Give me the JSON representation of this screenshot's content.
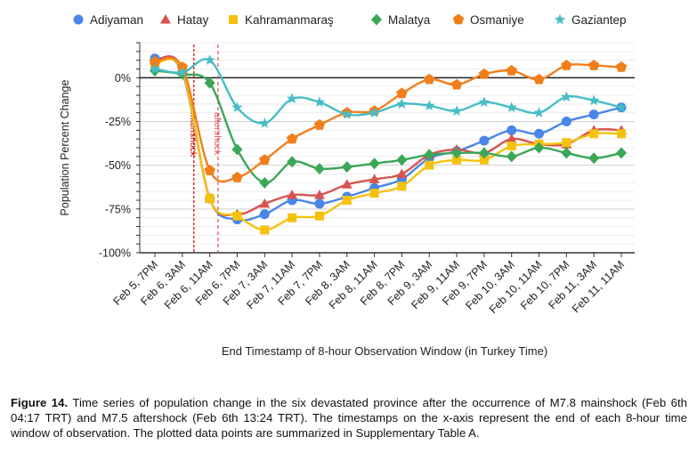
{
  "chart_data": {
    "type": "line",
    "xlabel": "End Timestamp of 8-hour Observation Window (in Turkey Time)",
    "ylabel": "Population Percent Change",
    "ylim": [
      -100,
      20
    ],
    "yticks": [
      0,
      -25,
      -50,
      -75,
      -100
    ],
    "ytick_labels": [
      "0%",
      "-25%",
      "-50%",
      "-75%",
      "-100%"
    ],
    "legend_position": "top",
    "grid": true,
    "categories": [
      "Feb 5, 7PM",
      "Feb 6, 3AM",
      "Feb 6, 11AM",
      "Feb 6, 7PM",
      "Feb 7, 3AM",
      "Feb 7, 11AM",
      "Feb 7, 7PM",
      "Feb 8, 3AM",
      "Feb 8, 11AM",
      "Feb 8, 7PM",
      "Feb 9, 3AM",
      "Feb 9, 11AM",
      "Feb 9, 7PM",
      "Feb 10, 3AM",
      "Feb 10, 11AM",
      "Feb 10, 7PM",
      "Feb 11, 3AM",
      "Feb 11, 11AM"
    ],
    "annotations": [
      {
        "label": "mainshock",
        "x": 1.42,
        "color": "#cc0000",
        "dash": "3,2"
      },
      {
        "label": "aftershock",
        "x": 2.3,
        "color": "#e05050",
        "dash": "4,3"
      }
    ],
    "series": [
      {
        "name": "Adiyaman",
        "color": "#4a86e8",
        "marker": "circle",
        "values": [
          11,
          3,
          -69,
          -81,
          -78,
          -70,
          -72,
          -68,
          -63,
          -58,
          -46,
          -42,
          -36,
          -30,
          -32,
          -25,
          -21,
          -17
        ]
      },
      {
        "name": "Hatay",
        "color": "#d9534f",
        "marker": "triangle",
        "values": [
          10,
          5,
          -69,
          -78,
          -72,
          -67,
          -67,
          -61,
          -58,
          -55,
          -44,
          -41,
          -43,
          -35,
          -38,
          -38,
          -30,
          -30
        ]
      },
      {
        "name": "Kahramanmaraş",
        "color": "#f4c20d",
        "marker": "square",
        "values": [
          8,
          4,
          -69,
          -79,
          -87,
          -80,
          -79,
          -70,
          -66,
          -62,
          -50,
          -47,
          -47,
          -39,
          -38,
          -37,
          -32,
          -32
        ]
      },
      {
        "name": "Malatya",
        "color": "#3aa757",
        "marker": "diamond",
        "values": [
          4,
          2,
          -3,
          -41,
          -60,
          -48,
          -52,
          -51,
          -49,
          -47,
          -44,
          -43,
          -43,
          -45,
          -40,
          -43,
          -46,
          -43
        ]
      },
      {
        "name": "Osmaniye",
        "color": "#f07f1a",
        "marker": "pentagon",
        "values": [
          9,
          6,
          -53,
          -57,
          -47,
          -35,
          -27,
          -20,
          -19,
          -9,
          -1,
          -4,
          2,
          4,
          -1,
          7,
          7,
          6
        ]
      },
      {
        "name": "Gaziantep",
        "color": "#46bdc6",
        "marker": "star",
        "values": [
          5,
          3,
          10,
          -17,
          -26,
          -12,
          -14,
          -21,
          -20,
          -15,
          -16,
          -19,
          -14,
          -17,
          -20,
          -11,
          -13,
          -17
        ]
      }
    ]
  },
  "caption": {
    "bold": "Figure 14.",
    "text": " Time series of population change in the six devastated province after the occurrence of M7.8 mainshock (Feb 6th 04:17 TRT) and M7.5 aftershock (Feb 6th 13:24 TRT). The timestamps on the x-axis represent the end of each 8-hour time window of observation. The plotted data points are summarized in Supplementary Table A."
  }
}
